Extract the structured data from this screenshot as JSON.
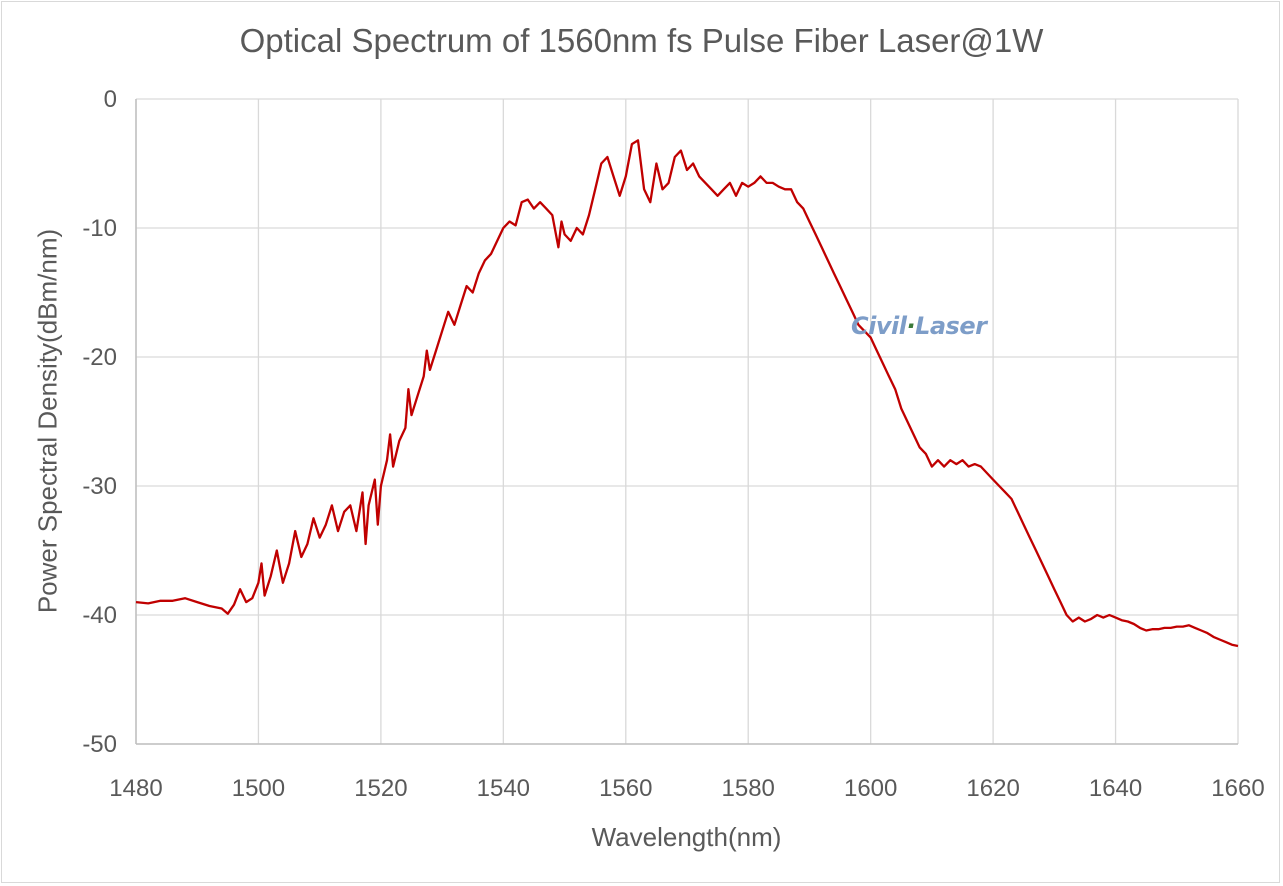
{
  "chart_data": {
    "type": "line",
    "title": "Optical Spectrum of 1560nm fs Pulse Fiber Laser@1W",
    "xlabel": "Wavelength(nm)",
    "ylabel": "Power Spectral Density(dBm/nm)",
    "xlim": [
      1480,
      1660
    ],
    "ylim": [
      -50,
      0
    ],
    "xticks": [
      1480,
      1500,
      1520,
      1540,
      1560,
      1580,
      1600,
      1620,
      1640,
      1660
    ],
    "yticks": [
      0,
      -10,
      -20,
      -30,
      -40,
      -50
    ],
    "grid": true,
    "legend": "none",
    "series": [
      {
        "color": "#c00000",
        "points": [
          [
            1480,
            -39.0
          ],
          [
            1482,
            -39.1
          ],
          [
            1484,
            -38.9
          ],
          [
            1486,
            -38.9
          ],
          [
            1488,
            -38.7
          ],
          [
            1490,
            -39.0
          ],
          [
            1492,
            -39.3
          ],
          [
            1494,
            -39.5
          ],
          [
            1495,
            -39.9
          ],
          [
            1496,
            -39.2
          ],
          [
            1497,
            -38.0
          ],
          [
            1498,
            -39.0
          ],
          [
            1499,
            -38.7
          ],
          [
            1500,
            -37.5
          ],
          [
            1500.5,
            -36.0
          ],
          [
            1501,
            -38.5
          ],
          [
            1502,
            -37.0
          ],
          [
            1503,
            -35.0
          ],
          [
            1504,
            -37.5
          ],
          [
            1505,
            -36.0
          ],
          [
            1506,
            -33.5
          ],
          [
            1507,
            -35.5
          ],
          [
            1508,
            -34.5
          ],
          [
            1509,
            -32.5
          ],
          [
            1510,
            -34.0
          ],
          [
            1511,
            -33.0
          ],
          [
            1512,
            -31.5
          ],
          [
            1513,
            -33.5
          ],
          [
            1514,
            -32.0
          ],
          [
            1515,
            -31.5
          ],
          [
            1516,
            -33.5
          ],
          [
            1517,
            -30.5
          ],
          [
            1517.5,
            -34.5
          ],
          [
            1518,
            -31.5
          ],
          [
            1519,
            -29.5
          ],
          [
            1519.5,
            -33.0
          ],
          [
            1520,
            -30.0
          ],
          [
            1521,
            -28.0
          ],
          [
            1521.5,
            -26.0
          ],
          [
            1522,
            -28.5
          ],
          [
            1523,
            -26.5
          ],
          [
            1524,
            -25.5
          ],
          [
            1524.5,
            -22.5
          ],
          [
            1525,
            -24.5
          ],
          [
            1526,
            -23.0
          ],
          [
            1527,
            -21.5
          ],
          [
            1527.5,
            -19.5
          ],
          [
            1528,
            -21.0
          ],
          [
            1529,
            -19.5
          ],
          [
            1530,
            -18.0
          ],
          [
            1531,
            -16.5
          ],
          [
            1532,
            -17.5
          ],
          [
            1533,
            -16.0
          ],
          [
            1534,
            -14.5
          ],
          [
            1535,
            -15.0
          ],
          [
            1536,
            -13.5
          ],
          [
            1537,
            -12.5
          ],
          [
            1538,
            -12.0
          ],
          [
            1539,
            -11.0
          ],
          [
            1540,
            -10.0
          ],
          [
            1541,
            -9.5
          ],
          [
            1542,
            -9.8
          ],
          [
            1543,
            -8.0
          ],
          [
            1544,
            -7.8
          ],
          [
            1545,
            -8.5
          ],
          [
            1546,
            -8.0
          ],
          [
            1547,
            -8.5
          ],
          [
            1548,
            -9.0
          ],
          [
            1549,
            -11.5
          ],
          [
            1549.5,
            -9.5
          ],
          [
            1550,
            -10.5
          ],
          [
            1551,
            -11.0
          ],
          [
            1552,
            -10.0
          ],
          [
            1553,
            -10.5
          ],
          [
            1554,
            -9.0
          ],
          [
            1555,
            -7.0
          ],
          [
            1556,
            -5.0
          ],
          [
            1557,
            -4.5
          ],
          [
            1558,
            -6.0
          ],
          [
            1559,
            -7.5
          ],
          [
            1560,
            -6.0
          ],
          [
            1561,
            -3.5
          ],
          [
            1562,
            -3.2
          ],
          [
            1563,
            -7.0
          ],
          [
            1564,
            -8.0
          ],
          [
            1565,
            -5.0
          ],
          [
            1566,
            -7.0
          ],
          [
            1567,
            -6.5
          ],
          [
            1568,
            -4.5
          ],
          [
            1569,
            -4.0
          ],
          [
            1570,
            -5.5
          ],
          [
            1571,
            -5.0
          ],
          [
            1572,
            -6.0
          ],
          [
            1573,
            -6.5
          ],
          [
            1574,
            -7.0
          ],
          [
            1575,
            -7.5
          ],
          [
            1576,
            -7.0
          ],
          [
            1577,
            -6.5
          ],
          [
            1578,
            -7.5
          ],
          [
            1579,
            -6.5
          ],
          [
            1580,
            -6.8
          ],
          [
            1581,
            -6.5
          ],
          [
            1582,
            -6.0
          ],
          [
            1583,
            -6.5
          ],
          [
            1584,
            -6.5
          ],
          [
            1585,
            -6.8
          ],
          [
            1586,
            -7.0
          ],
          [
            1587,
            -7.0
          ],
          [
            1588,
            -8.0
          ],
          [
            1589,
            -8.5
          ],
          [
            1590,
            -9.5
          ],
          [
            1591,
            -10.5
          ],
          [
            1592,
            -11.5
          ],
          [
            1593,
            -12.5
          ],
          [
            1594,
            -13.5
          ],
          [
            1595,
            -14.5
          ],
          [
            1596,
            -15.5
          ],
          [
            1597,
            -16.5
          ],
          [
            1598,
            -17.5
          ],
          [
            1600,
            -18.5
          ],
          [
            1601,
            -19.5
          ],
          [
            1602,
            -20.5
          ],
          [
            1603,
            -21.5
          ],
          [
            1604,
            -22.5
          ],
          [
            1605,
            -24.0
          ],
          [
            1606,
            -25.0
          ],
          [
            1607,
            -26.0
          ],
          [
            1608,
            -27.0
          ],
          [
            1609,
            -27.5
          ],
          [
            1610,
            -28.5
          ],
          [
            1611,
            -28.0
          ],
          [
            1612,
            -28.5
          ],
          [
            1613,
            -28.0
          ],
          [
            1614,
            -28.3
          ],
          [
            1615,
            -28.0
          ],
          [
            1616,
            -28.5
          ],
          [
            1617,
            -28.3
          ],
          [
            1618,
            -28.5
          ],
          [
            1619,
            -29.0
          ],
          [
            1620,
            -29.5
          ],
          [
            1621,
            -30.0
          ],
          [
            1622,
            -30.5
          ],
          [
            1623,
            -31.0
          ],
          [
            1624,
            -32.0
          ],
          [
            1625,
            -33.0
          ],
          [
            1626,
            -34.0
          ],
          [
            1627,
            -35.0
          ],
          [
            1628,
            -36.0
          ],
          [
            1629,
            -37.0
          ],
          [
            1630,
            -38.0
          ],
          [
            1631,
            -39.0
          ],
          [
            1632,
            -40.0
          ],
          [
            1633,
            -40.5
          ],
          [
            1634,
            -40.2
          ],
          [
            1635,
            -40.5
          ],
          [
            1636,
            -40.3
          ],
          [
            1637,
            -40.0
          ],
          [
            1638,
            -40.2
          ],
          [
            1639,
            -40.0
          ],
          [
            1640,
            -40.2
          ],
          [
            1641,
            -40.4
          ],
          [
            1642,
            -40.5
          ],
          [
            1643,
            -40.7
          ],
          [
            1644,
            -41.0
          ],
          [
            1645,
            -41.2
          ],
          [
            1646,
            -41.1
          ],
          [
            1647,
            -41.1
          ],
          [
            1648,
            -41.0
          ],
          [
            1649,
            -41.0
          ],
          [
            1650,
            -40.9
          ],
          [
            1651,
            -40.9
          ],
          [
            1652,
            -40.8
          ],
          [
            1653,
            -41.0
          ],
          [
            1654,
            -41.2
          ],
          [
            1655,
            -41.4
          ],
          [
            1656,
            -41.7
          ],
          [
            1657,
            -41.9
          ],
          [
            1658,
            -42.1
          ],
          [
            1659,
            -42.3
          ],
          [
            1660,
            -42.4
          ]
        ]
      }
    ],
    "watermark": "CivilLaser"
  }
}
